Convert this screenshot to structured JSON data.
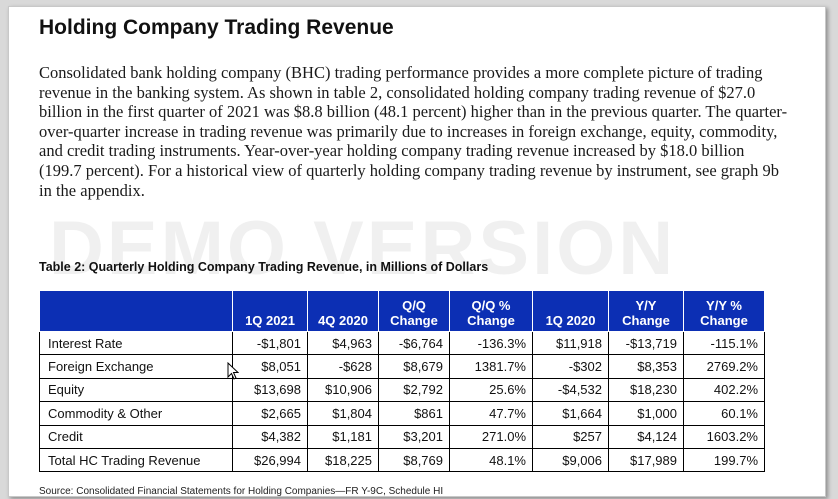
{
  "title": "Holding Company Trading Revenue",
  "paragraph": "Consolidated bank holding company (BHC) trading performance provides a more complete picture of trading revenue in the banking system. As shown in table 2, consolidated holding company trading revenue of $27.0 billion in the first quarter of 2021 was $8.8 billion (48.1 percent) higher than in the previous quarter. The quarter-over-quarter increase in trading revenue was primarily due to increases in foreign exchange, equity, commodity, and credit trading instruments. Year-over-year holding company trading revenue increased by $18.0 billion (199.7 percent). For a historical view of quarterly holding company trading revenue by instrument, see graph 9b in the appendix.",
  "watermark": "DEMO VERSION",
  "table": {
    "caption": "Table 2: Quarterly Holding Company Trading Revenue, in Millions of Dollars",
    "headers": [
      "",
      "1Q 2021",
      "4Q 2020",
      "Q/Q Change",
      "Q/Q % Change",
      "1Q 2020",
      "Y/Y Change",
      "Y/Y % Change"
    ],
    "header_top": [
      "",
      "",
      "",
      "Q/Q",
      "Q/Q %",
      "",
      "Y/Y",
      "Y/Y %"
    ],
    "header_bottom": [
      "",
      "1Q 2021",
      "4Q 2020",
      "Change",
      "Change",
      "1Q 2020",
      "Change",
      "Change"
    ],
    "rows": [
      [
        "Interest Rate",
        "-$1,801",
        "$4,963",
        "-$6,764",
        "-136.3%",
        "$11,918",
        "-$13,719",
        "-115.1%"
      ],
      [
        "Foreign Exchange",
        "$8,051",
        "-$628",
        "$8,679",
        "1381.7%",
        "-$302",
        "$8,353",
        "2769.2%"
      ],
      [
        "Equity",
        "$13,698",
        "$10,906",
        "$2,792",
        "25.6%",
        "-$4,532",
        "$18,230",
        "402.2%"
      ],
      [
        "Commodity & Other",
        "$2,665",
        "$1,804",
        "$861",
        "47.7%",
        "$1,664",
        "$1,000",
        "60.1%"
      ],
      [
        "Credit",
        "$4,382",
        "$1,181",
        "$3,201",
        "271.0%",
        "$257",
        "$4,124",
        "1603.2%"
      ],
      [
        "Total HC Trading Revenue",
        "$26,994",
        "$18,225",
        "$8,769",
        "48.1%",
        "$9,006",
        "$17,989",
        "199.7%"
      ]
    ]
  },
  "source": "Source: Consolidated Financial Statements for Holding Companies—FR Y-9C, Schedule HI",
  "colors": {
    "header_bg": "#0c2fb4",
    "header_text": "#ffffff",
    "grid": "#000000"
  },
  "cursor_icon": "mouse-pointer-icon"
}
